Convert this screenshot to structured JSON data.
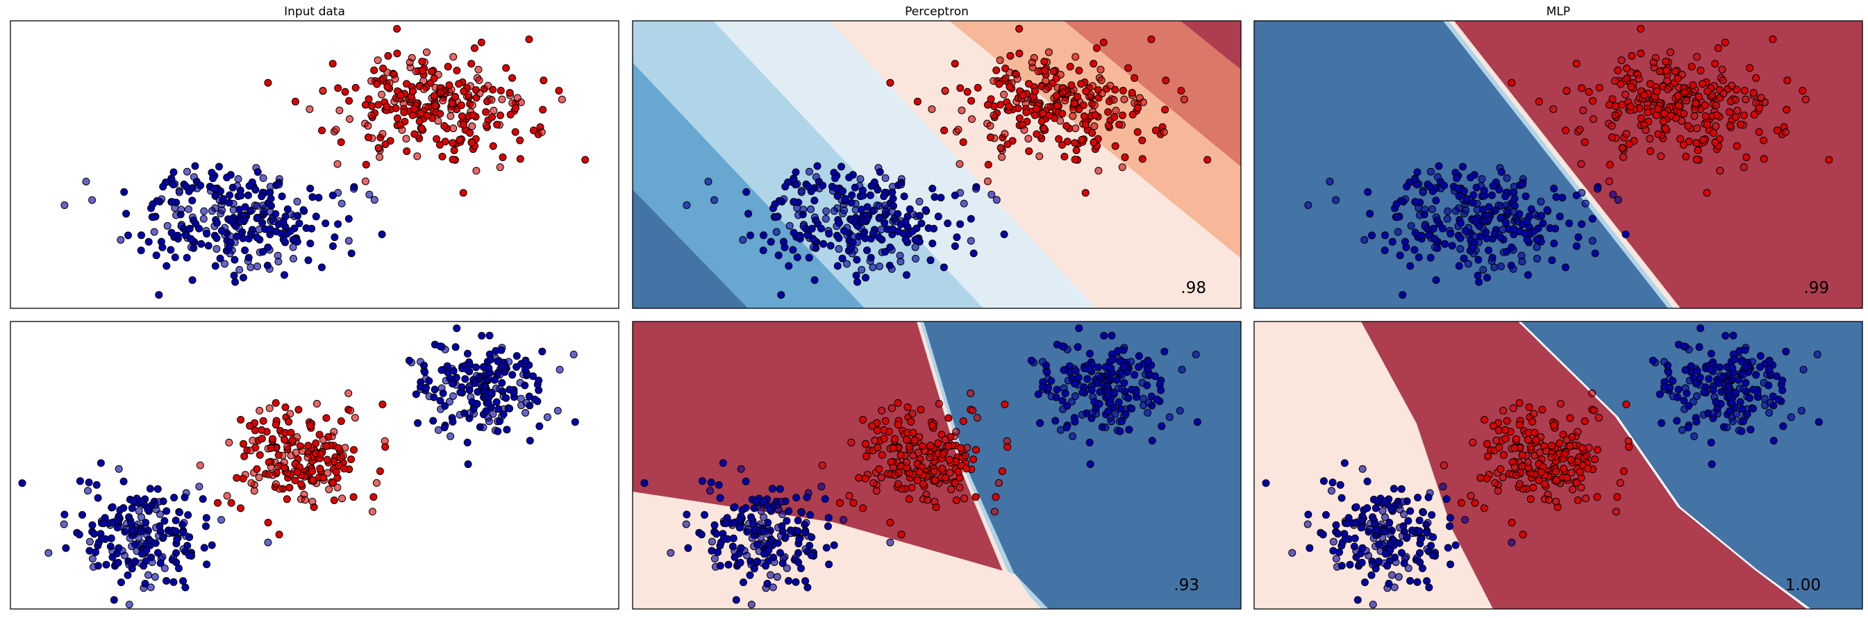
{
  "figure": {
    "columns": [
      "Input data",
      "Perceptron",
      "MLP"
    ],
    "colors": {
      "class_a": "#0000aa",
      "class_b": "#dd0000",
      "point_edge": "#000000",
      "region_blue_deep": "#4473a6",
      "region_blue_mid": "#67a7d0",
      "region_blue_light": "#b0d4e8",
      "region_blue_pale": "#e1edf4",
      "region_red_pale": "#fbe6dd",
      "region_red_light": "#f6b899",
      "region_red_mid": "#dc7868",
      "region_red_deep": "#ae3d50"
    }
  },
  "chart_data": [
    {
      "type": "scatter",
      "row": 0,
      "column": "Input data",
      "title": "Input data",
      "xlim": [
        -3.2,
        7.0
      ],
      "ylim": [
        -1.8,
        4.1
      ],
      "classes": [
        {
          "id": 0,
          "color": "#0000aa",
          "center": [
            0.5,
            0.0
          ],
          "spread": [
            0.85,
            0.55
          ],
          "count": 280
        },
        {
          "id": 1,
          "color": "#dd0000",
          "center": [
            3.8,
            2.4
          ],
          "spread": [
            0.9,
            0.55
          ],
          "count": 280
        }
      ],
      "grid": false
    },
    {
      "type": "scatter",
      "row": 0,
      "column": "Perceptron",
      "title": "Perceptron",
      "xlim": [
        -3.2,
        7.0
      ],
      "ylim": [
        -1.8,
        4.1
      ],
      "classes": [
        {
          "id": 0,
          "color": "#0000aa",
          "center": [
            0.5,
            0.0
          ],
          "spread": [
            0.85,
            0.55
          ],
          "count": 280
        },
        {
          "id": 1,
          "color": "#dd0000",
          "center": [
            3.8,
            2.4
          ],
          "spread": [
            0.9,
            0.55
          ],
          "count": 280
        }
      ],
      "decision_surface": "linear, 8 probability bands (blue to red)",
      "score": ".98",
      "grid": false
    },
    {
      "type": "scatter",
      "row": 0,
      "column": "MLP",
      "title": "MLP",
      "xlim": [
        -3.2,
        7.0
      ],
      "ylim": [
        -1.8,
        4.1
      ],
      "classes": [
        {
          "id": 0,
          "color": "#0000aa",
          "center": [
            0.5,
            0.0
          ],
          "spread": [
            0.85,
            0.55
          ],
          "count": 280
        },
        {
          "id": 1,
          "color": "#dd0000",
          "center": [
            3.8,
            2.4
          ],
          "spread": [
            0.9,
            0.55
          ],
          "count": 280
        }
      ],
      "decision_surface": "sharp near-linear boundary",
      "score": ".99",
      "grid": false
    },
    {
      "type": "scatter",
      "row": 1,
      "column": "Input data",
      "title": "",
      "xlim": [
        -0.2,
        10.0
      ],
      "ylim": [
        -0.5,
        4.3
      ],
      "classes": [
        {
          "id": 0,
          "color": "#0000aa",
          "center": [
            2.0,
            0.8
          ],
          "spread": [
            0.6,
            0.4
          ],
          "count": 200
        },
        {
          "id": 0,
          "color": "#0000aa",
          "center": [
            7.8,
            3.2
          ],
          "spread": [
            0.6,
            0.4
          ],
          "count": 200
        },
        {
          "id": 1,
          "color": "#dd0000",
          "center": [
            4.6,
            2.0
          ],
          "spread": [
            0.55,
            0.45
          ],
          "count": 200
        }
      ],
      "grid": false
    },
    {
      "type": "scatter",
      "row": 1,
      "column": "Perceptron",
      "title": "",
      "xlim": [
        -0.2,
        10.0
      ],
      "ylim": [
        -0.5,
        4.3
      ],
      "classes": [
        {
          "id": 0,
          "color": "#0000aa",
          "center": [
            2.0,
            0.8
          ],
          "spread": [
            0.6,
            0.4
          ],
          "count": 200
        },
        {
          "id": 0,
          "color": "#0000aa",
          "center": [
            7.8,
            3.2
          ],
          "spread": [
            0.6,
            0.4
          ],
          "count": 200
        },
        {
          "id": 1,
          "color": "#dd0000",
          "center": [
            4.6,
            2.0
          ],
          "spread": [
            0.55,
            0.45
          ],
          "count": 200
        }
      ],
      "decision_surface": "three regions (pale, red, blue)",
      "score": ".93",
      "grid": false
    },
    {
      "type": "scatter",
      "row": 1,
      "column": "MLP",
      "title": "",
      "xlim": [
        -0.2,
        10.0
      ],
      "ylim": [
        -0.5,
        4.3
      ],
      "classes": [
        {
          "id": 0,
          "color": "#0000aa",
          "center": [
            2.0,
            0.8
          ],
          "spread": [
            0.6,
            0.4
          ],
          "count": 200
        },
        {
          "id": 0,
          "color": "#0000aa",
          "center": [
            7.8,
            3.2
          ],
          "spread": [
            0.6,
            0.4
          ],
          "count": 200
        },
        {
          "id": 1,
          "color": "#dd0000",
          "center": [
            4.6,
            2.0
          ],
          "spread": [
            0.55,
            0.45
          ],
          "count": 200
        }
      ],
      "decision_surface": "three diagonal regions (pale, red, blue)",
      "score": "1.00",
      "grid": false
    }
  ]
}
